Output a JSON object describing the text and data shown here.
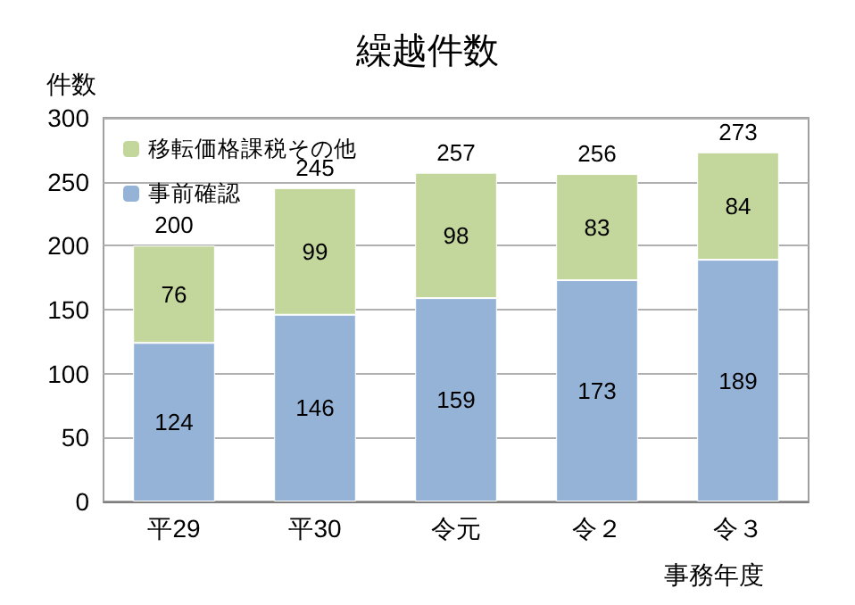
{
  "chart_data": {
    "type": "bar",
    "title": "繰越件数",
    "ylabel": "件数",
    "xlabel": "事務年度",
    "categories": [
      "平29",
      "平30",
      "令元",
      "令２",
      "令３"
    ],
    "series": [
      {
        "name": "事前確認",
        "color": "#95b3d7",
        "values": [
          124,
          146,
          159,
          173,
          189
        ]
      },
      {
        "name": "移転価格課税その他",
        "color": "#c3d69b",
        "values": [
          76,
          99,
          98,
          83,
          84
        ]
      }
    ],
    "stacked": true,
    "data_labels": true,
    "totals": [
      "200",
      "245",
      "257",
      "256",
      "273"
    ],
    "ylim": [
      0,
      300
    ],
    "yticks": [
      0,
      50,
      100,
      150,
      200,
      250,
      300
    ],
    "grid": "y",
    "legend": "top left"
  }
}
